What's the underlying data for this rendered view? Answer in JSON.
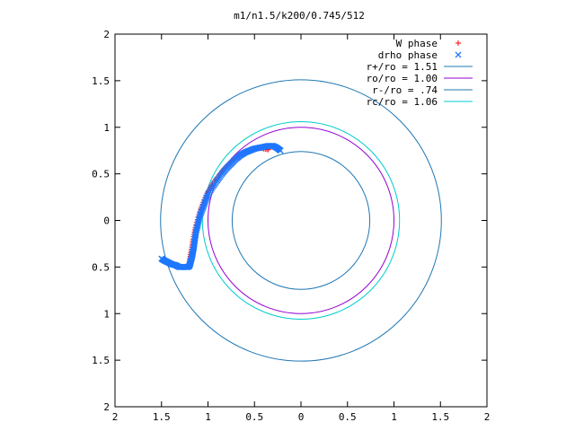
{
  "chart_data": {
    "type": "scatter",
    "title": "m1/n1.5/k200/0.745/512",
    "xlabel": "",
    "ylabel": "",
    "xlim": [
      -2,
      2
    ],
    "ylim": [
      -2,
      2
    ],
    "grid": false,
    "legend_position": "top-right",
    "x_ticks": [
      "2",
      "1.5",
      "1",
      "0.5",
      "0",
      "0.5",
      "1",
      "1.5",
      "2"
    ],
    "y_ticks": [
      "2",
      "1.5",
      "1",
      "0.5",
      "0",
      "0.5",
      "1",
      "1.5",
      "2"
    ],
    "x_tick_values": [
      -2,
      -1.5,
      -1,
      -0.5,
      0,
      0.5,
      1,
      1.5,
      2
    ],
    "y_tick_values": [
      2,
      1.5,
      1,
      0.5,
      0,
      -0.5,
      -1,
      -1.5,
      -2
    ],
    "circles": [
      {
        "label": "r+/ro = 1.51",
        "r": 1.51,
        "color": "#1f77b4"
      },
      {
        "label": "ro/ro = 1.00",
        "r": 1.0,
        "color": "#9400d3"
      },
      {
        "label": "r-/ro = .74",
        "r": 0.74,
        "color": "#1f77b4"
      },
      {
        "label": "rc/ro = 1.06",
        "r": 1.06,
        "color": "#00cccc"
      }
    ],
    "series": [
      {
        "name": "W phase",
        "marker": "+",
        "color": "#ff0000",
        "x": [
          -0.35,
          -0.45,
          -0.55,
          -0.65,
          -0.75,
          -0.85,
          -0.95,
          -1.02,
          -1.08,
          -1.13,
          -1.16,
          -1.18,
          -1.2
        ],
        "y": [
          0.76,
          0.78,
          0.76,
          0.71,
          0.63,
          0.53,
          0.4,
          0.27,
          0.12,
          -0.05,
          -0.2,
          -0.33,
          -0.44
        ]
      },
      {
        "name": "drho phase",
        "marker": "x",
        "color": "#1f77ff",
        "x": [
          -0.22,
          -0.26,
          -0.3,
          -0.35,
          -0.4,
          -0.45,
          -0.5,
          -0.55,
          -0.6,
          -0.65,
          -0.7,
          -0.75,
          -0.8,
          -0.85,
          -0.9,
          -0.95,
          -1.0,
          -1.03,
          -1.06,
          -1.09,
          -1.11,
          -1.13,
          -1.14,
          -1.15,
          -1.16,
          -1.17,
          -1.18,
          -1.19,
          -1.2,
          -1.22,
          -1.25,
          -1.28,
          -1.31,
          -1.35,
          -1.39,
          -1.43,
          -1.47,
          -1.5
        ],
        "y": [
          0.75,
          0.78,
          0.8,
          0.8,
          0.79,
          0.78,
          0.77,
          0.75,
          0.73,
          0.7,
          0.66,
          0.61,
          0.56,
          0.5,
          0.43,
          0.36,
          0.28,
          0.2,
          0.12,
          0.04,
          -0.05,
          -0.13,
          -0.2,
          -0.27,
          -0.33,
          -0.38,
          -0.42,
          -0.46,
          -0.49,
          -0.5,
          -0.5,
          -0.5,
          -0.5,
          -0.48,
          -0.47,
          -0.45,
          -0.43,
          -0.41
        ]
      }
    ]
  }
}
